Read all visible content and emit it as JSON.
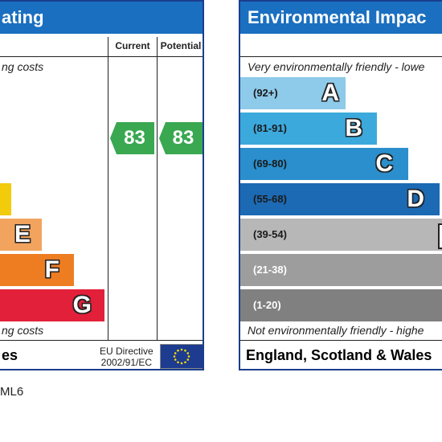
{
  "left_panel": {
    "title": "ating",
    "top_note": "ng costs",
    "bottom_note": "ng costs",
    "col_current": "Current",
    "col_potential": "Potential",
    "current_rating": "83",
    "potential_rating": "83",
    "bands": [
      {
        "letter": "",
        "color": "#f2cb0a"
      },
      {
        "letter": "E",
        "color": "#f2a45e"
      },
      {
        "letter": "F",
        "color": "#ee7d22"
      },
      {
        "letter": "G",
        "color": "#e3203a"
      }
    ],
    "rating_color": "#39a851",
    "footer": "es",
    "directive_line1": "EU Directive",
    "directive_line2": "2002/91/EC"
  },
  "right_panel": {
    "title": "Environmental Impac",
    "top_note": "Very environmentally friendly - lowe",
    "bottom_note": "Not environmentally friendly - highe",
    "bands": [
      {
        "range": "(92+)",
        "letter": "A",
        "color": "#8ecae9",
        "range_color": "#1a1a1a"
      },
      {
        "range": "(81-91)",
        "letter": "B",
        "color": "#3ca9dc",
        "range_color": "#1a1a1a"
      },
      {
        "range": "(69-80)",
        "letter": "C",
        "color": "#2a8fcc",
        "range_color": "#1a1a1a"
      },
      {
        "range": "(55-68)",
        "letter": "D",
        "color": "#1c6ab4",
        "range_color": "#1a1a1a"
      },
      {
        "range": "(39-54)",
        "letter": "",
        "color": "#b7b7b7",
        "range_color": "#1a1a1a"
      },
      {
        "range": "(21-38)",
        "letter": "",
        "color": "#9d9d9d",
        "range_color": "#ffffff"
      },
      {
        "range": "(1-20)",
        "letter": "",
        "color": "#808080",
        "range_color": "#ffffff"
      }
    ],
    "footer": "England, Scotland & Wales"
  },
  "caption": "ML6"
}
